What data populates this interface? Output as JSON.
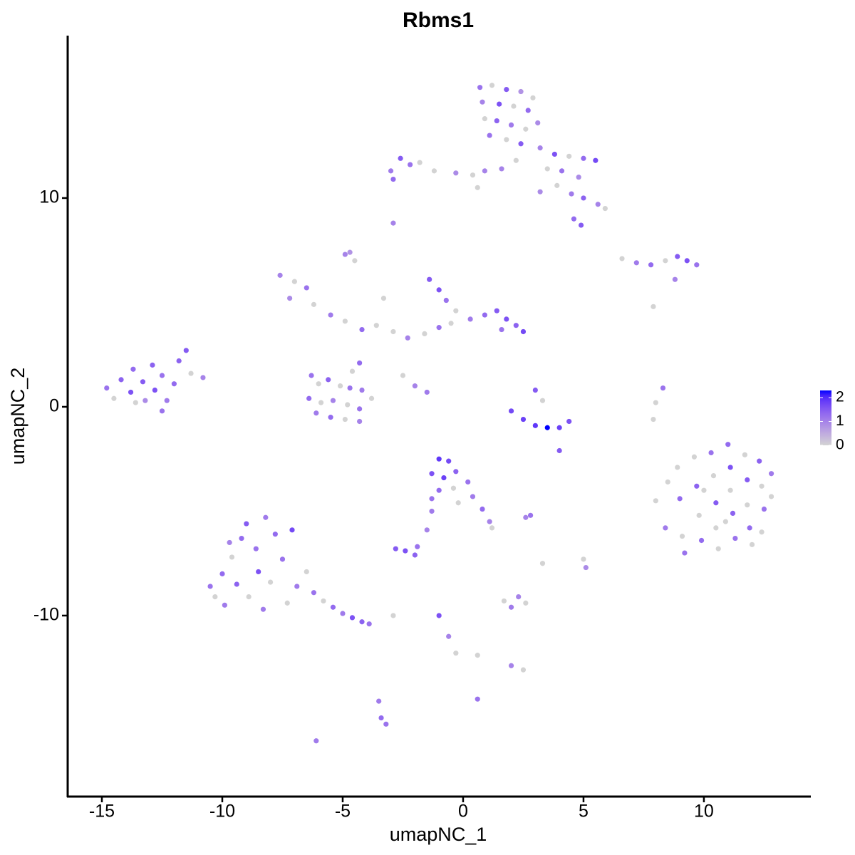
{
  "chart_data": {
    "type": "scatter",
    "title": "Rbms1",
    "xlabel": "umapNC_1",
    "ylabel": "umapNC_2",
    "xlim": [
      -16.42,
      14.44
    ],
    "ylim": [
      -18.67,
      17.78
    ],
    "xticks": [
      -15,
      -10,
      -5,
      0,
      5,
      10
    ],
    "yticks": [
      -10,
      0,
      10
    ],
    "color_low": "#d3d3d3",
    "color_high": "#0000ff",
    "color_lim": [
      0,
      2.3
    ],
    "color_ticks": [
      0,
      1,
      2
    ],
    "x": [
      0.7,
      1.2,
      1.8,
      2.4,
      2.9,
      0.8,
      1.5,
      2.1,
      2.7,
      3.1,
      0.9,
      1.4,
      2.0,
      2.6,
      1.1,
      1.8,
      2.4,
      3.2,
      3.8,
      4.4,
      5.0,
      5.5,
      3.5,
      4.1,
      4.8,
      3.9,
      4.5,
      5.0,
      5.6,
      5.9,
      4.6,
      4.9,
      3.2,
      2.2,
      1.6,
      -3,
      -2.6,
      -2.2,
      -1.8,
      -2.9,
      -1.2,
      -0.3,
      0.4,
      0.9,
      0.6,
      -2.9,
      -4.7,
      -4.5,
      6.6,
      7.2,
      7.8,
      8.4,
      8.9,
      9.3,
      9.7,
      8.8,
      7.9,
      -7.6,
      -7.0,
      -6.5,
      -7.2,
      -6.2,
      -5.5,
      -4.9,
      -4.2,
      -3.6,
      -2.9,
      -2.3,
      -1.6,
      -1.0,
      -1.4,
      -1.0,
      -0.7,
      -0.3,
      0.3,
      0.9,
      1.4,
      1.8,
      2.2,
      2.5,
      1.6,
      -4.3,
      -4.6,
      -2.5,
      -2.0,
      -1.5,
      -0.5,
      -3.3,
      -4.9,
      -6.3,
      -6.0,
      -5.6,
      -5.1,
      -4.7,
      -4.2,
      -6.4,
      -5.9,
      -5.4,
      -4.8,
      -4.3,
      -3.8,
      -6.1,
      -5.5,
      -4.9,
      -4.3,
      -14.8,
      -14.5,
      -14.2,
      -13.8,
      -13.7,
      -13.3,
      -13.2,
      -12.9,
      -12.8,
      -12.5,
      -12.3,
      -12.0,
      -11.8,
      -11.5,
      -11.3,
      -10.8,
      -12.5,
      -13.6,
      2.0,
      2.5,
      3.0,
      3.5,
      4.0,
      4.4,
      3.0,
      3.3,
      4.0,
      8.3,
      8.0,
      7.9,
      8.0,
      8.4,
      8.5,
      8.9,
      9.0,
      9.1,
      9.2,
      9.6,
      9.7,
      9.8,
      9.9,
      10.3,
      10.4,
      10.5,
      10.5,
      10.6,
      11.0,
      11.1,
      11.1,
      11.2,
      11.3,
      11.7,
      11.8,
      11.8,
      11.9,
      12.0,
      12.3,
      12.4,
      12.5,
      12.4,
      12.8,
      12.8,
      10.0,
      10.9,
      -1.0,
      -0.6,
      -1.3,
      -0.8,
      -0.3,
      -1.0,
      -0.4,
      0.2,
      0.4,
      0.8,
      1.1,
      1.2,
      -1.3,
      -0.2,
      -2.8,
      -2.4,
      -2.0,
      -1.9,
      -1.5,
      -1.3,
      2.8,
      2.6,
      5.0,
      5.1,
      3.3,
      2.6,
      2.0,
      2.3,
      1.7,
      -1.0,
      -0.6,
      -0.3,
      0.6,
      2.0,
      2.5,
      0.6,
      -3.5,
      -3.4,
      -3.2,
      -6.1,
      -2.9,
      -10.5,
      -10.3,
      -10.0,
      -9.9,
      -9.6,
      -9.4,
      -9.2,
      -9.0,
      -8.9,
      -8.6,
      -8.5,
      -8.2,
      -8.0,
      -7.8,
      -7.5,
      -7.3,
      -7.1,
      -6.9,
      -6.5,
      -6.2,
      -5.8,
      -5.4,
      -5.0,
      -4.6,
      -4.2,
      -3.9,
      -9.7,
      -8.3
    ],
    "y": [
      15.3,
      15.4,
      15.2,
      15.1,
      14.8,
      14.6,
      14.5,
      14.4,
      14.2,
      13.6,
      13.8,
      13.7,
      13.5,
      13.3,
      13.0,
      12.8,
      12.6,
      12.4,
      12.1,
      12.0,
      11.9,
      11.8,
      11.4,
      11.3,
      11.0,
      10.6,
      10.2,
      10.0,
      9.7,
      9.5,
      9.0,
      8.7,
      10.3,
      11.8,
      11.4,
      11.3,
      11.9,
      11.6,
      11.7,
      10.9,
      11.3,
      11.2,
      11.1,
      11.3,
      10.5,
      8.8,
      7.4,
      7.0,
      7.1,
      6.9,
      6.8,
      7.0,
      7.2,
      7.0,
      6.8,
      6.1,
      4.8,
      6.3,
      6.0,
      5.7,
      5.2,
      4.9,
      4.4,
      4.1,
      3.7,
      3.9,
      3.6,
      3.3,
      3.5,
      3.8,
      6.1,
      5.6,
      5.1,
      4.6,
      4.2,
      4.4,
      4.6,
      4.2,
      3.9,
      3.6,
      3.7,
      2.1,
      1.7,
      1.5,
      1.0,
      0.7,
      4.0,
      5.2,
      7.3,
      1.5,
      1.1,
      1.3,
      1.0,
      0.9,
      0.8,
      0.4,
      0.2,
      0.3,
      0.1,
      -0.1,
      0.4,
      -0.3,
      -0.5,
      -0.6,
      -0.7,
      0.9,
      0.4,
      1.3,
      0.7,
      1.8,
      1.2,
      0.3,
      2.0,
      0.8,
      1.5,
      0.3,
      1.1,
      2.2,
      2.7,
      1.6,
      1.4,
      -0.2,
      0.2,
      -0.2,
      -0.6,
      -0.9,
      -1.0,
      -1.0,
      -0.7,
      0.8,
      0.3,
      -2.1,
      0.9,
      0.2,
      -0.6,
      -4.5,
      -5.8,
      -3.6,
      -2.9,
      -4.4,
      -6.2,
      -7.0,
      -2.4,
      -3.8,
      -5.2,
      -6.4,
      -2.2,
      -3.3,
      -4.6,
      -5.8,
      -6.8,
      -1.8,
      -2.9,
      -4.0,
      -5.1,
      -6.3,
      -2.3,
      -3.5,
      -4.7,
      -5.8,
      -6.6,
      -2.6,
      -3.8,
      -4.9,
      -6.0,
      -3.2,
      -4.3,
      -4.0,
      -5.5,
      -2.5,
      -2.6,
      -3.2,
      -3.4,
      -3.1,
      -4.0,
      -3.9,
      -3.6,
      -4.3,
      -4.9,
      -5.5,
      -5.8,
      -4.4,
      -4.6,
      -6.8,
      -6.9,
      -7.1,
      -6.7,
      -5.9,
      -5.0,
      -5.2,
      -5.3,
      -7.3,
      -7.7,
      -7.5,
      -9.4,
      -9.6,
      -9.1,
      -9.3,
      -10.0,
      -11.0,
      -11.8,
      -11.9,
      -12.4,
      -12.6,
      -14.0,
      -14.1,
      -14.9,
      -15.2,
      -16.0,
      -10.0,
      -8.6,
      -9.1,
      -8.0,
      -9.5,
      -7.2,
      -8.5,
      -6.3,
      -5.6,
      -9.1,
      -6.8,
      -7.9,
      -5.3,
      -8.4,
      -6.1,
      -7.3,
      -9.4,
      -5.9,
      -8.6,
      -7.9,
      -8.9,
      -9.3,
      -9.6,
      -9.9,
      -10.1,
      -10.3,
      -10.4,
      -6.5,
      -9.7
    ],
    "values": [
      1.2,
      0,
      1.5,
      0.8,
      0,
      1.0,
      1.6,
      0,
      1.3,
      0.9,
      0,
      1.4,
      1.1,
      0,
      1.2,
      0,
      1.5,
      1.0,
      1.6,
      0,
      1.3,
      1.7,
      0,
      1.2,
      0.9,
      0,
      1.1,
      1.4,
      1.0,
      0,
      1.3,
      1.5,
      0.9,
      0,
      1.0,
      1.1,
      1.5,
      1.2,
      0,
      1.3,
      0,
      0.9,
      0,
      1.0,
      0,
      1.0,
      0.8,
      0,
      0,
      1.1,
      1.3,
      0,
      1.5,
      1.6,
      1.2,
      1.0,
      0,
      1.0,
      0,
      1.2,
      0.9,
      0,
      1.1,
      0,
      1.3,
      0,
      0,
      1.0,
      0,
      1.2,
      1.5,
      1.6,
      1.2,
      0,
      1.1,
      1.3,
      1.5,
      1.6,
      1.4,
      1.7,
      1.2,
      1.3,
      0,
      0,
      1.0,
      1.1,
      0,
      0,
      1.0,
      1.2,
      0,
      1.4,
      0,
      1.2,
      1.1,
      1.3,
      0,
      1.0,
      0,
      1.2,
      0,
      1.1,
      1.3,
      0,
      1.0,
      1.2,
      0,
      1.4,
      1.6,
      1.3,
      1.5,
      0.9,
      1.4,
      1.6,
      1.2,
      1.1,
      1.3,
      1.4,
      1.5,
      0,
      1.0,
      1.2,
      0,
      1.7,
      1.8,
      1.9,
      2.3,
      1.8,
      1.6,
      1.5,
      0,
      1.5,
      1.2,
      0,
      0,
      0,
      1.1,
      0,
      0,
      1.3,
      0,
      1.2,
      0,
      1.4,
      0,
      1.3,
      1.2,
      0,
      1.5,
      0,
      0,
      1.3,
      1.6,
      0,
      1.4,
      1.2,
      0,
      1.5,
      0,
      1.3,
      0,
      1.4,
      0,
      1.2,
      0,
      1.1,
      0,
      0,
      0,
      1.9,
      1.7,
      1.6,
      1.8,
      1.4,
      1.3,
      0,
      1.2,
      1.1,
      1.3,
      1.0,
      0,
      1.2,
      0,
      1.5,
      1.6,
      1.4,
      1.2,
      1.0,
      1.1,
      1.2,
      1.0,
      0,
      0.9,
      0,
      0,
      1.1,
      1.0,
      0,
      1.6,
      1.0,
      0,
      0,
      1.0,
      0,
      1.2,
      1.1,
      1.3,
      1.2,
      1.1,
      0,
      1.2,
      0,
      1.3,
      1.1,
      0,
      1.4,
      1.3,
      1.5,
      0,
      1.2,
      1.6,
      1.1,
      0,
      1.3,
      1.2,
      0,
      1.7,
      1.1,
      0,
      1.2,
      0,
      1.3,
      1.1,
      1.6,
      1.4,
      1.2,
      1.0,
      1.1
    ]
  }
}
